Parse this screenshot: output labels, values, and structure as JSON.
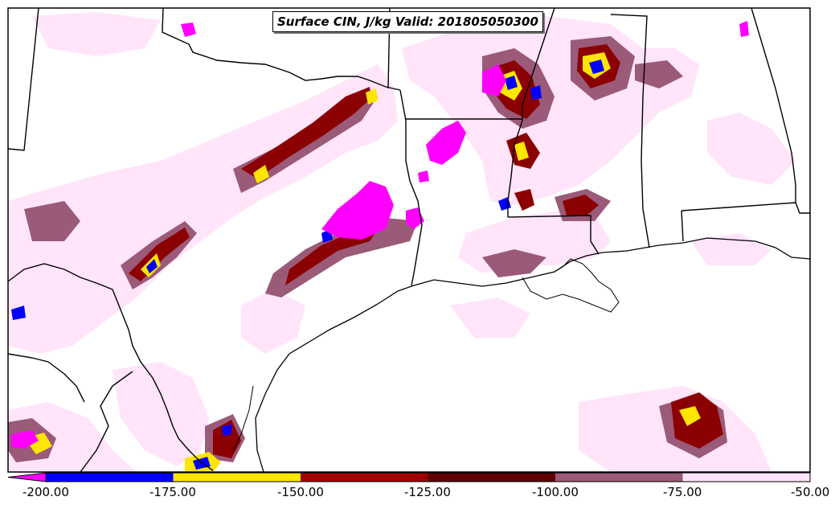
{
  "map": {
    "title": "Surface CIN, J/kg Valid: 201805050300"
  },
  "colorbar": {
    "ticks": [
      "-200.00",
      "-175.00",
      "-150.00",
      "-125.00",
      "-100.00",
      "-75.00",
      "-50.00"
    ],
    "bins": [
      {
        "color": "#ff00ff"
      },
      {
        "color": "#0000ff"
      },
      {
        "color": "#ffe600"
      },
      {
        "color": "#a00000"
      },
      {
        "color": "#600000"
      },
      {
        "color": "#9a5a78"
      },
      {
        "color": "#ffe4fa"
      }
    ]
  }
}
